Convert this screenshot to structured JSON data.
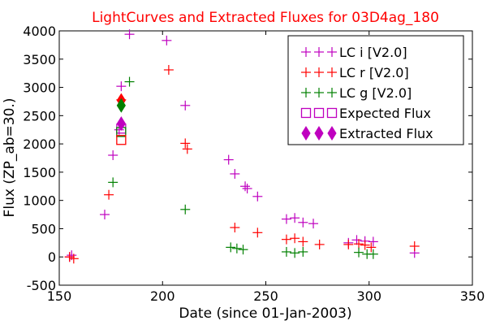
{
  "chart_data": {
    "type": "scatter",
    "title": "LightCurves and Extracted Fluxes for 03D4ag_180",
    "title_color": "#ff0000",
    "xlabel": "Date (since 01-Jan-2003)",
    "ylabel": "Flux (ZP_ab=30.)",
    "xlim": [
      150,
      350
    ],
    "ylim": [
      -500,
      4000
    ],
    "xticks": [
      150,
      200,
      250,
      300,
      350
    ],
    "yticks": [
      -500,
      0,
      500,
      1000,
      1500,
      2000,
      2500,
      3000,
      3500,
      4000
    ],
    "grid": false,
    "legend_position": "top-right",
    "series": [
      {
        "name": "LC i [V2.0]",
        "color": "#bf00bf",
        "marker": "plus",
        "points": [
          [
            155,
            0
          ],
          [
            156,
            30
          ],
          [
            172,
            750
          ],
          [
            176,
            1800
          ],
          [
            179,
            2250
          ],
          [
            180,
            3020
          ],
          [
            184,
            3940
          ],
          [
            202,
            3830
          ],
          [
            211,
            2680
          ],
          [
            232,
            1720
          ],
          [
            235,
            1470
          ],
          [
            240,
            1250
          ],
          [
            241,
            1210
          ],
          [
            246,
            1070
          ],
          [
            260,
            670
          ],
          [
            264,
            690
          ],
          [
            268,
            610
          ],
          [
            273,
            590
          ],
          [
            290,
            250
          ],
          [
            294,
            300
          ],
          [
            298,
            280
          ],
          [
            302,
            270
          ],
          [
            322,
            70
          ]
        ]
      },
      {
        "name": "LC r [V2.0]",
        "color": "#ff0000",
        "marker": "plus",
        "points": [
          [
            155,
            0
          ],
          [
            157,
            -30
          ],
          [
            174,
            1100
          ],
          [
            180,
            2780
          ],
          [
            203,
            3310
          ],
          [
            211,
            2010
          ],
          [
            212,
            1910
          ],
          [
            235,
            520
          ],
          [
            246,
            430
          ],
          [
            260,
            310
          ],
          [
            264,
            330
          ],
          [
            268,
            270
          ],
          [
            276,
            220
          ],
          [
            290,
            220
          ],
          [
            295,
            230
          ],
          [
            298,
            210
          ],
          [
            301,
            170
          ],
          [
            322,
            190
          ]
        ]
      },
      {
        "name": "LC g [V2.0]",
        "color": "#008000",
        "marker": "plus",
        "points": [
          [
            176,
            1320
          ],
          [
            184,
            3100
          ],
          [
            211,
            840
          ],
          [
            233,
            170
          ],
          [
            236,
            150
          ],
          [
            239,
            130
          ],
          [
            260,
            90
          ],
          [
            264,
            70
          ],
          [
            268,
            90
          ],
          [
            295,
            80
          ],
          [
            299,
            50
          ],
          [
            302,
            50
          ]
        ]
      },
      {
        "name": "Expected Flux",
        "marker": "open-square",
        "legend_color": "#bf00bf",
        "points": [
          [
            180,
            2270,
            "#bf00bf"
          ],
          [
            180,
            2210,
            "#008000"
          ],
          [
            180,
            2070,
            "#ff0000"
          ]
        ]
      },
      {
        "name": "Extracted Flux",
        "marker": "diamond",
        "legend_color": "#bf00bf",
        "points": [
          [
            180,
            2770,
            "#ff0000"
          ],
          [
            180,
            2680,
            "#008000"
          ],
          [
            180,
            2360,
            "#bf00bf"
          ]
        ]
      }
    ]
  }
}
